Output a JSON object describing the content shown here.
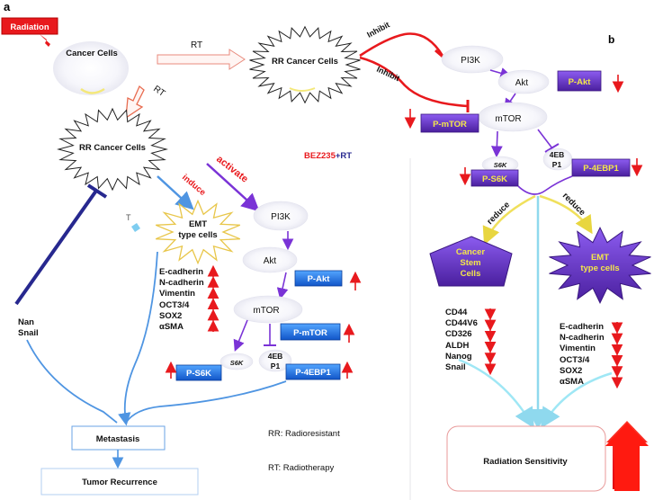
{
  "panels": {
    "a": "a",
    "b": "b"
  },
  "left": {
    "radiation": "Radiation",
    "cancer_cells": "Cancer Cells",
    "rt_top": "RT",
    "rt_down": "RT",
    "rr_cancer_cells": "RR Cancer Cells",
    "rr_cancer_cells_top": "RR Cancer Cells",
    "inhibit_1": "Inhibit",
    "inhibit_2": "Inhibit",
    "activate": "activate",
    "induce": "induce",
    "emt_line1": "EMT",
    "emt_line2": "type cells",
    "bez_red": "BEZ235",
    "bez_rest": "+RT",
    "pi3k": "PI3K",
    "akt": "Akt",
    "p_akt": "P-Akt",
    "mtor": "mTOR",
    "p_mtor": "P-mTOR",
    "s6k": "S6K",
    "eb_line1": "4EB",
    "eb_line2": "P1",
    "p_s6k": "P-S6K",
    "p_4ebp1": "P-4EBP1",
    "markers": [
      "E-cadherin",
      "N-cadherin",
      "Vimentin",
      "OCT3/4",
      "SOX2",
      "αSMA"
    ],
    "side_markers": [
      "Nan",
      "Snail"
    ],
    "stray_t": "T",
    "metastasis": "Metastasis",
    "tumor_recurrence": "Tumor Recurrence",
    "rr_def": "RR: Radioresistant",
    "rt_def": "RT: Radiotherapy"
  },
  "right": {
    "pi3k": "PI3K",
    "akt": "Akt",
    "p_akt": "P-Akt",
    "mtor": "mTOR",
    "p_mtor": "P-mTOR",
    "s6k": "S6K",
    "eb_line1": "4EB",
    "eb_line2": "P1",
    "p_s6k": "P-S6K",
    "p_4ebp1": "P-4EBP1",
    "reduce_1": "reduce",
    "reduce_2": "reduce",
    "csc_line1": "Cancer",
    "csc_line2": "Stem",
    "csc_line3": "Cells",
    "emt_line1": "EMT",
    "emt_line2": "type cells",
    "csc_markers": [
      "CD44",
      "CD44V6",
      "CD326",
      "ALDH",
      "Nanog",
      "Snail"
    ],
    "emt_markers": [
      "E-cadherin",
      "N-cadherin",
      "Vimentin",
      "OCT3/4",
      "SOX2",
      "αSMA"
    ],
    "radiation_sensitivity": "Radiation Sensitivity"
  },
  "colors": {
    "red": "#e8191d",
    "purple": "#7a33d6",
    "box_purple": "#5b2fb8",
    "box_blue": "#1c6fe0",
    "dark_blue": "#27288f",
    "light_blue": "#4f95e2",
    "cyan": "#9fe7f5",
    "yellow": "#f5e56b"
  }
}
